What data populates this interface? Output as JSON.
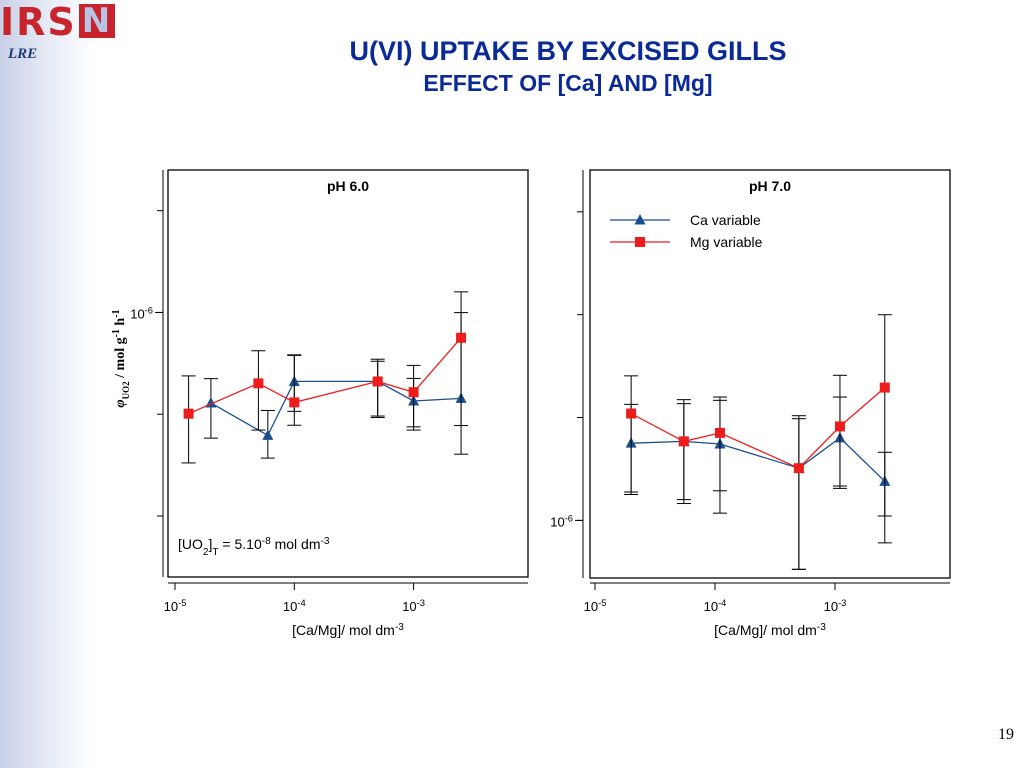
{
  "logo": {
    "letters_red": "IRS",
    "letter_boxed": "N",
    "subunit": "LRE"
  },
  "title": {
    "line1": "U(VI) UPTAKE BY EXCISED GILLS",
    "line2": "EFFECT OF [Ca] AND [Mg]"
  },
  "page_number": "19",
  "colors": {
    "title": "#0b2a96",
    "ca_series": "#1c4f8f",
    "mg_series": "#ee1c1c",
    "logo_red": "#c8242b"
  },
  "chart_data": [
    {
      "type": "scatter",
      "title": "pH 6.0",
      "xlabel": {
        "main": "[Ca/Mg]/ mol dm",
        "sup": "-3"
      },
      "ylabel": "φ_UO2 / mol g-1 h-1",
      "ylabel_parts": {
        "phi": "φ",
        "sub": "UO",
        "sub2": "2",
        "unit": " / mol g",
        "sup1": "-1",
        "h": " h",
        "sup2": "-1"
      },
      "x_scale": "log",
      "xlim": [
        1e-05,
        0.0075
      ],
      "ylim_log10": [
        -6.78,
        -5.58
      ],
      "x_ticks": [
        {
          "value": 1e-05,
          "label": "10",
          "exp": "-5"
        },
        {
          "value": 0.0001,
          "label": "10",
          "exp": "-4"
        },
        {
          "value": 0.001,
          "label": "10",
          "exp": "-3"
        }
      ],
      "y_ticks": [
        {
          "value": 1e-06,
          "label": "10",
          "exp": "-6"
        }
      ],
      "annotation": {
        "p1": "[UO",
        "s1": "2",
        "p2": "]",
        "s2": "T",
        "p3": " = 5.10",
        "e1": "-8",
        "p4": " mol dm",
        "e2": "-3"
      },
      "legend": null,
      "series": [
        {
          "name": "Ca variable",
          "marker": "triangle",
          "x": [
            2e-05,
            6e-05,
            0.0001,
            0.0005,
            0.001,
            0.0025
          ],
          "y": [
            5.41e-07,
            4.34e-07,
            6.26e-07,
            6.26e-07,
            5.48e-07,
            5.58e-07
          ],
          "err_low": [
            4.26e-07,
            3.72e-07,
            5.11e-07,
            4.95e-07,
            4.6e-07,
            4.64e-07
          ],
          "err_high": [
            6.38e-07,
            5.14e-07,
            7.47e-07,
            7.18e-07,
            6.39e-07,
            9.99e-07
          ]
        },
        {
          "name": "Mg variable",
          "marker": "square",
          "x": [
            1.3e-05,
            5e-05,
            0.0001,
            0.0005,
            0.001,
            0.0025
          ],
          "y": [
            5.03e-07,
            6.18e-07,
            5.43e-07,
            6.26e-07,
            5.82e-07,
            8.42e-07
          ],
          "err_low": [
            3.6e-07,
            4.5e-07,
            4.65e-07,
            4.9e-07,
            4.5e-07,
            3.82e-07
          ],
          "err_high": [
            6.5e-07,
            7.71e-07,
            7.5e-07,
            7.28e-07,
            6.98e-07,
            1.15e-06
          ]
        }
      ]
    },
    {
      "type": "scatter",
      "title": "pH 7.0",
      "xlabel": {
        "main": "[Ca/Mg]/ mol dm",
        "sup": "-3"
      },
      "x_scale": "log",
      "xlim": [
        1e-05,
        0.0075
      ],
      "ylim_log10": [
        -6.168,
        -4.978
      ],
      "x_ticks": [
        {
          "value": 1e-05,
          "label": "10",
          "exp": "-5"
        },
        {
          "value": 0.0001,
          "label": "10",
          "exp": "-4"
        },
        {
          "value": 0.001,
          "label": "10",
          "exp": "-3"
        }
      ],
      "y_ticks": [
        {
          "value": 1e-06,
          "label": "10",
          "exp": "-6"
        }
      ],
      "legend": {
        "position": "top-left"
      },
      "series": [
        {
          "name": "Ca variable",
          "marker": "triangle",
          "x": [
            2e-05,
            5.5e-05,
            0.00011,
            0.0005,
            0.0011,
            0.0026
          ],
          "y": [
            1.68e-06,
            1.7e-06,
            1.67e-06,
            1.42e-06,
            1.74e-06,
            1.3e-06
          ],
          "err_low": [
            1.21e-06,
            1.15e-06,
            1.22e-06,
            7.2e-07,
            1.26e-06,
            1.03e-06
          ],
          "err_high": [
            2.64e-06,
            2.19e-06,
            2.24e-06,
            1.98e-06,
            2.29e-06,
            1.58e-06
          ]
        },
        {
          "name": "Mg variable",
          "marker": "square",
          "x": [
            2e-05,
            5.5e-05,
            0.00011,
            0.0005,
            0.0011,
            0.0026
          ],
          "y": [
            2.05e-06,
            1.7e-06,
            1.8e-06,
            1.42e-06,
            1.88e-06,
            2.44e-06
          ],
          "err_low": [
            1.19e-06,
            1.12e-06,
            1.05e-06,
            7.2e-07,
            1.24e-06,
            8.6e-07
          ],
          "err_high": [
            2.18e-06,
            2.25e-06,
            2.29e-06,
            2.02e-06,
            2.65e-06,
            3.98e-06
          ]
        }
      ]
    }
  ]
}
